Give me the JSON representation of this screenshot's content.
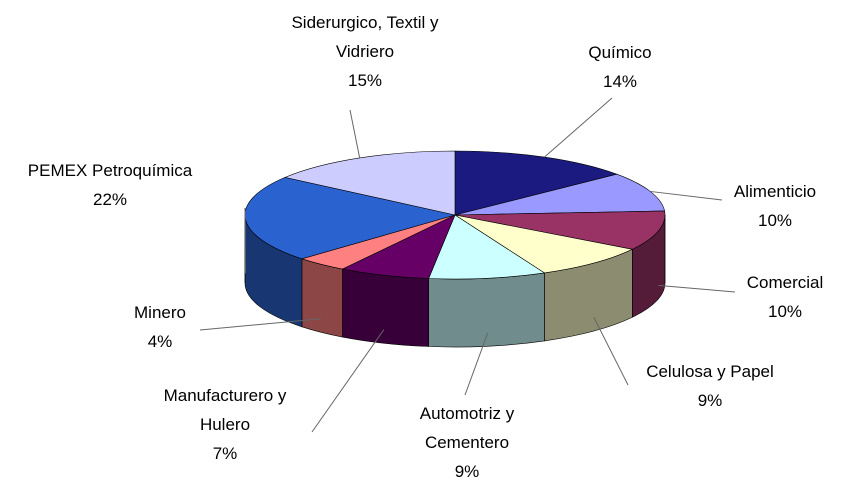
{
  "chart_data": {
    "type": "pie",
    "categories": [
      "Químico",
      "Alimenticio",
      "Comercial",
      "Celulosa y Papel",
      "Automotriz y Cementero",
      "Manufacturero y Hulero",
      "Minero",
      "PEMEX Petroquímica",
      "Siderurgico, Textil y Vidriero"
    ],
    "values": [
      14,
      10,
      10,
      9,
      9,
      7,
      4,
      22,
      15
    ],
    "value_labels": [
      "14%",
      "10%",
      "10%",
      "9%",
      "9%",
      "7%",
      "4%",
      "22%",
      "15%"
    ],
    "colors": [
      "#1a1a80",
      "#9999ff",
      "#993366",
      "#ffffcc",
      "#ccffff",
      "#660066",
      "#ff8080",
      "#2a62d0",
      "#ccccff"
    ]
  }
}
